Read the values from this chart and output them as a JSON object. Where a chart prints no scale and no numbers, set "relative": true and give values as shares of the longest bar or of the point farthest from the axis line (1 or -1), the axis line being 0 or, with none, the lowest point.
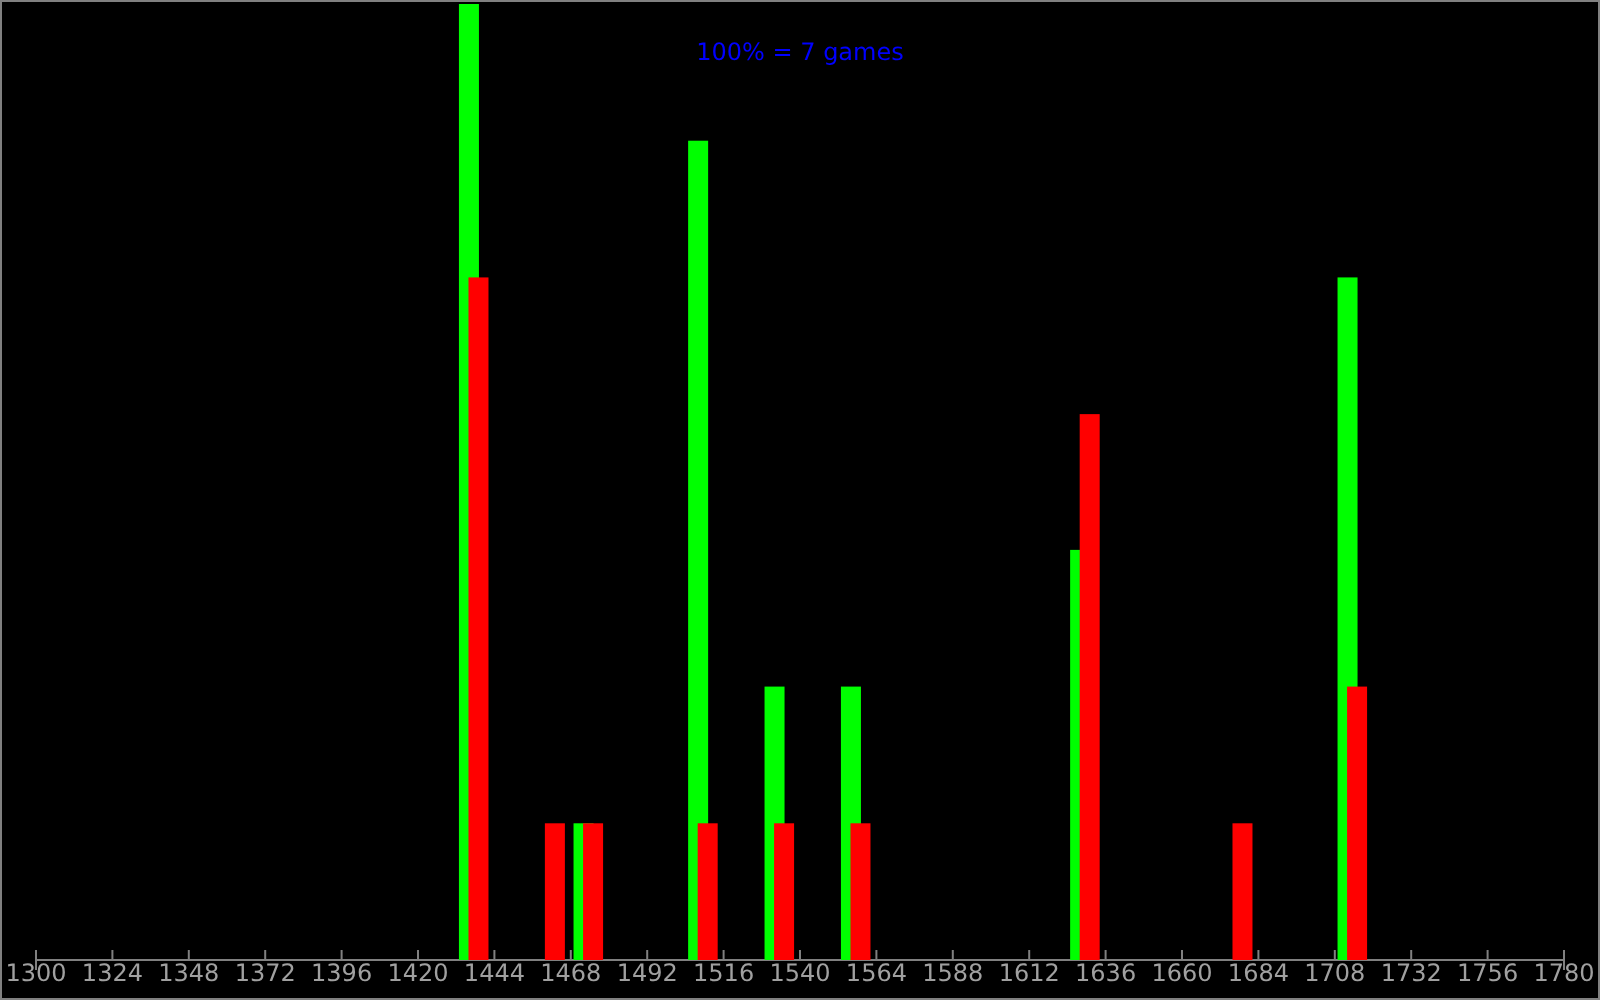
{
  "chart_data": {
    "type": "bar",
    "title": "100% = 7 games",
    "relative": true,
    "xlim": [
      1300,
      1780
    ],
    "xticks": [
      1300,
      1324,
      1348,
      1372,
      1396,
      1420,
      1444,
      1468,
      1492,
      1516,
      1540,
      1564,
      1588,
      1612,
      1636,
      1660,
      1684,
      1708,
      1732,
      1756,
      1780
    ],
    "grid": false,
    "series": [
      {
        "color": "#00ff00",
        "x": [
          1436,
          1472,
          1508,
          1532,
          1556,
          1628,
          1712
        ],
        "values": [
          1,
          0.143,
          0.857,
          0.286,
          0.286,
          0.429,
          0.714
        ]
      },
      {
        "color": "#ff0000",
        "x": [
          1439,
          1463,
          1475,
          1511,
          1535,
          1559,
          1631,
          1679,
          1715
        ],
        "values": [
          0.714,
          0.143,
          0.143,
          0.143,
          0.143,
          0.143,
          0.571,
          0.143,
          0.286
        ]
      }
    ]
  }
}
